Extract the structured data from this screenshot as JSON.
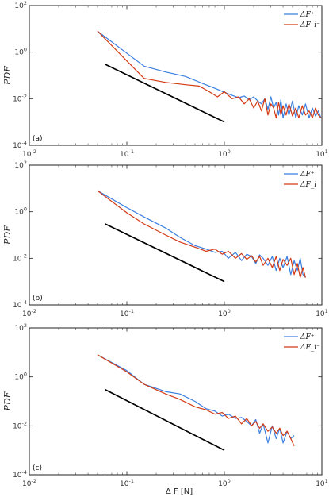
{
  "xlabel": "Δ F [N]",
  "colors": {
    "plus": "#3b7fe0",
    "minus": "#d33a14",
    "ref": "#000000"
  },
  "legend": {
    "plus": "ΔF⁺",
    "minus": "ΔF_i⁻"
  },
  "chart_data": [
    {
      "type": "line",
      "panel_label": "(a)",
      "ylabel": "PDF",
      "xscale": "log",
      "yscale": "log",
      "xlim": [
        0.01,
        10
      ],
      "ylim": [
        0.0001,
        100
      ],
      "x_ticks": [
        "10^-2",
        "10^-1",
        "10^0",
        "10^1"
      ],
      "y_ticks": [
        "10^-4",
        "10^-2",
        "10^0",
        "10^2"
      ],
      "legend_position": "top-right",
      "series": [
        {
          "name": "ΔF⁺",
          "color": "#3b7fe0",
          "x": [
            0.05,
            0.15,
            0.25,
            0.4,
            0.6,
            0.8,
            1.0,
            1.2,
            1.4,
            1.6,
            1.8,
            2.0,
            2.2,
            2.4,
            2.6,
            2.8,
            3.0,
            3.2,
            3.4,
            3.6,
            3.8,
            4.0,
            4.3,
            4.6,
            5.0,
            5.4,
            5.8,
            6.3,
            6.8,
            7.4,
            8.0,
            8.6,
            9.2,
            9.8
          ],
          "y": [
            8.0,
            0.25,
            0.14,
            0.09,
            0.045,
            0.028,
            0.019,
            0.014,
            0.011,
            0.013,
            0.009,
            0.012,
            0.008,
            0.006,
            0.01,
            0.0035,
            0.012,
            0.004,
            0.007,
            0.002,
            0.009,
            0.0015,
            0.006,
            0.002,
            0.008,
            0.0015,
            0.005,
            0.002,
            0.006,
            0.0015,
            0.004,
            0.0018,
            0.003,
            0.0015
          ]
        },
        {
          "name": "ΔF_i⁻",
          "color": "#d33a14",
          "x": [
            0.05,
            0.15,
            0.25,
            0.4,
            0.55,
            0.7,
            0.85,
            1.0,
            1.2,
            1.4,
            1.6,
            1.8,
            2.0,
            2.2,
            2.4,
            2.6,
            2.8,
            3.0,
            3.2,
            3.4,
            3.6,
            3.8,
            4.0,
            4.3,
            4.6,
            5.0,
            5.4,
            5.8,
            6.3,
            6.8,
            7.4,
            8.0,
            8.6,
            9.2,
            9.8
          ],
          "y": [
            8.0,
            0.075,
            0.05,
            0.04,
            0.035,
            0.02,
            0.012,
            0.02,
            0.01,
            0.012,
            0.006,
            0.01,
            0.004,
            0.008,
            0.003,
            0.01,
            0.002,
            0.006,
            0.004,
            0.0015,
            0.007,
            0.002,
            0.005,
            0.002,
            0.006,
            0.0018,
            0.004,
            0.0015,
            0.005,
            0.002,
            0.003,
            0.0015,
            0.004,
            0.002,
            0.0015
          ]
        },
        {
          "name": "",
          "color": "#000000",
          "x": [
            0.06,
            1.0
          ],
          "y": [
            0.3,
            0.001
          ]
        }
      ]
    },
    {
      "type": "line",
      "panel_label": "(b)",
      "ylabel": "PDF",
      "xscale": "log",
      "yscale": "log",
      "xlim": [
        0.01,
        10
      ],
      "ylim": [
        0.0001,
        100
      ],
      "x_ticks": [
        "10^-2",
        "10^-1",
        "10^0",
        "10^1"
      ],
      "y_ticks": [
        "10^-4",
        "10^-2",
        "10^0",
        "10^2"
      ],
      "legend_position": "top-right",
      "series": [
        {
          "name": "ΔF⁺",
          "color": "#3b7fe0",
          "x": [
            0.05,
            0.1,
            0.15,
            0.25,
            0.35,
            0.5,
            0.65,
            0.8,
            0.95,
            1.1,
            1.3,
            1.5,
            1.7,
            1.9,
            2.1,
            2.3,
            2.5,
            2.8,
            3.1,
            3.4,
            3.7,
            4.0,
            4.4,
            4.8,
            5.2,
            5.6,
            6.0,
            6.4,
            6.8
          ],
          "y": [
            8.0,
            1.5,
            0.6,
            0.2,
            0.08,
            0.035,
            0.025,
            0.018,
            0.02,
            0.01,
            0.018,
            0.008,
            0.015,
            0.012,
            0.006,
            0.014,
            0.01,
            0.005,
            0.012,
            0.003,
            0.01,
            0.004,
            0.012,
            0.002,
            0.008,
            0.003,
            0.01,
            0.002,
            0.0015
          ]
        },
        {
          "name": "ΔF_i⁻",
          "color": "#d33a14",
          "x": [
            0.05,
            0.1,
            0.15,
            0.25,
            0.35,
            0.5,
            0.65,
            0.8,
            0.95,
            1.1,
            1.3,
            1.5,
            1.7,
            1.9,
            2.1,
            2.3,
            2.5,
            2.8,
            3.1,
            3.4,
            3.7,
            4.0,
            4.4,
            4.8,
            5.2,
            5.6,
            6.0,
            6.4,
            6.8
          ],
          "y": [
            8.0,
            0.9,
            0.3,
            0.1,
            0.05,
            0.03,
            0.02,
            0.025,
            0.015,
            0.02,
            0.01,
            0.016,
            0.009,
            0.013,
            0.007,
            0.012,
            0.005,
            0.01,
            0.004,
            0.012,
            0.003,
            0.009,
            0.005,
            0.01,
            0.002,
            0.006,
            0.0015,
            0.004,
            0.0015
          ]
        },
        {
          "name": "",
          "color": "#000000",
          "x": [
            0.06,
            1.0
          ],
          "y": [
            0.3,
            0.001
          ]
        }
      ]
    },
    {
      "type": "line",
      "panel_label": "(c)",
      "ylabel": "PDF",
      "xscale": "log",
      "yscale": "log",
      "xlim": [
        0.01,
        10
      ],
      "ylim": [
        0.0001,
        100
      ],
      "x_ticks": [
        "10^-2",
        "10^-1",
        "10^0",
        "10^1"
      ],
      "y_ticks": [
        "10^-4",
        "10^-2",
        "10^0",
        "10^2"
      ],
      "legend_position": "top-right",
      "series": [
        {
          "name": "ΔF⁺",
          "color": "#3b7fe0",
          "x": [
            0.05,
            0.1,
            0.15,
            0.25,
            0.35,
            0.5,
            0.65,
            0.8,
            0.95,
            1.1,
            1.3,
            1.5,
            1.7,
            1.9,
            2.1,
            2.3,
            2.5,
            2.8,
            3.1,
            3.4,
            3.7,
            4.0,
            4.4,
            4.8,
            5.2
          ],
          "y": [
            8.0,
            1.8,
            0.5,
            0.25,
            0.2,
            0.1,
            0.05,
            0.04,
            0.025,
            0.03,
            0.02,
            0.022,
            0.015,
            0.01,
            0.018,
            0.005,
            0.012,
            0.002,
            0.01,
            0.003,
            0.008,
            0.002,
            0.006,
            0.003,
            0.004
          ]
        },
        {
          "name": "ΔF_i⁻",
          "color": "#d33a14",
          "x": [
            0.05,
            0.1,
            0.15,
            0.25,
            0.35,
            0.5,
            0.65,
            0.8,
            0.95,
            1.1,
            1.3,
            1.5,
            1.7,
            1.9,
            2.1,
            2.3,
            2.5,
            2.8,
            3.1,
            3.4,
            3.7,
            4.0,
            4.4,
            4.8,
            5.2
          ],
          "y": [
            8.0,
            1.6,
            0.5,
            0.2,
            0.12,
            0.06,
            0.045,
            0.03,
            0.035,
            0.02,
            0.025,
            0.012,
            0.02,
            0.01,
            0.015,
            0.008,
            0.012,
            0.006,
            0.009,
            0.005,
            0.008,
            0.004,
            0.006,
            0.003,
            0.0015
          ]
        },
        {
          "name": "",
          "color": "#000000",
          "x": [
            0.06,
            1.0
          ],
          "y": [
            0.3,
            0.001
          ]
        }
      ]
    }
  ]
}
